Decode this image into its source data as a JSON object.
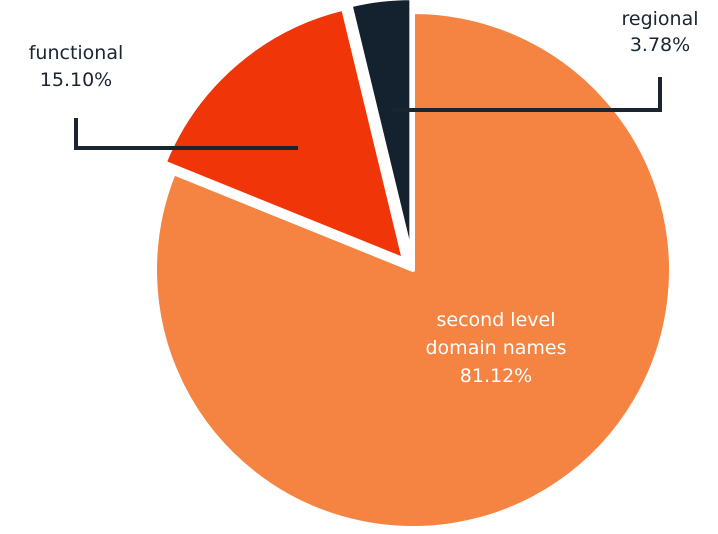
{
  "chart_data": {
    "type": "pie",
    "title": "",
    "slices": [
      {
        "label": "second level domain names",
        "label_lines": [
          "second level",
          "domain names"
        ],
        "value": 81.12,
        "value_text": "81.12%",
        "color": "#f58442",
        "label_color": "#ffffff",
        "exploded": false
      },
      {
        "label": "functional",
        "label_lines": [
          "functional"
        ],
        "value": 15.1,
        "value_text": "15.10%",
        "color": "#f03509",
        "label_color": "#1a2530",
        "exploded": true
      },
      {
        "label": "regional",
        "label_lines": [
          "regional"
        ],
        "value": 3.78,
        "value_text": "3.78%",
        "color": "#14222f",
        "label_color": "#1a2530",
        "exploded": true
      }
    ],
    "start_angle_deg": 0,
    "direction": "clockwise",
    "legend": "none",
    "label_placement": "inside for large slice, leader lines for small slices"
  }
}
